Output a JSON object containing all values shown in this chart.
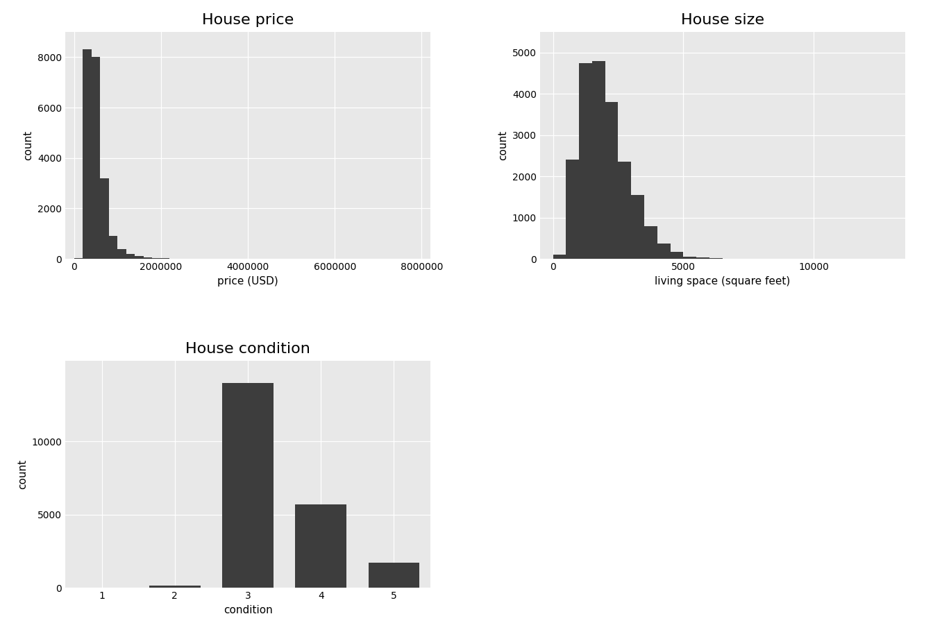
{
  "background_color": "#e8e8e8",
  "bar_color": "#3d3d3d",
  "fig_bg": "#ffffff",
  "plot1": {
    "title": "House price",
    "xlabel": "price (USD)",
    "ylabel": "count",
    "bin_edges": [
      0,
      200000,
      400000,
      600000,
      800000,
      1000000,
      1200000,
      1400000,
      1600000,
      1800000,
      2000000,
      2200000,
      2400000,
      2600000,
      2800000,
      3000000,
      3200000,
      3400000,
      3600000,
      3800000,
      4000000,
      4200000,
      4400000,
      4600000,
      4800000,
      5000000,
      5200000,
      5400000,
      5600000,
      5800000,
      6000000,
      6200000,
      6400000,
      6600000,
      6800000,
      7000000,
      7200000,
      7400000,
      7600000,
      7800000,
      8000000
    ],
    "counts": [
      30,
      8300,
      8000,
      3200,
      900,
      400,
      200,
      100,
      60,
      40,
      25,
      15,
      10,
      8,
      6,
      4,
      3,
      2,
      2,
      1,
      1,
      1,
      1,
      0,
      0,
      0,
      0,
      0,
      0,
      0,
      0,
      0,
      0,
      0,
      0,
      0,
      0,
      0,
      0,
      0
    ],
    "xlim": [
      -200000,
      8200000
    ],
    "ylim": [
      0,
      9000
    ],
    "xticks": [
      0,
      2000000,
      4000000,
      6000000,
      8000000
    ],
    "xticklabels": [
      "0",
      "2000000",
      "4000000",
      "6000000",
      "8000000"
    ],
    "yticks": [
      0,
      2000,
      4000,
      6000,
      8000
    ],
    "title_fontsize": 16,
    "label_fontsize": 11,
    "tick_fontsize": 10
  },
  "plot2": {
    "title": "House size",
    "xlabel": "living space (square feet)",
    "ylabel": "count",
    "bin_edges": [
      0,
      500,
      1000,
      1500,
      2000,
      2500,
      3000,
      3500,
      4000,
      4500,
      5000,
      5500,
      6000,
      6500,
      7000,
      7500,
      8000,
      8500,
      9000,
      9500,
      10000,
      10500,
      11000,
      11500,
      12000,
      12500,
      13000
    ],
    "counts": [
      100,
      2400,
      4750,
      4800,
      3800,
      2350,
      1550,
      800,
      380,
      175,
      60,
      30,
      15,
      8,
      5,
      3,
      2,
      1,
      1,
      0,
      0,
      0,
      0,
      0,
      0,
      0
    ],
    "xlim": [
      -500,
      13500
    ],
    "ylim": [
      0,
      5500
    ],
    "xticks": [
      0,
      5000,
      10000
    ],
    "xticklabels": [
      "0",
      "5000",
      "10000"
    ],
    "yticks": [
      0,
      1000,
      2000,
      3000,
      4000,
      5000
    ],
    "title_fontsize": 16,
    "label_fontsize": 11,
    "tick_fontsize": 10
  },
  "plot3": {
    "title": "House condition",
    "xlabel": "condition",
    "ylabel": "count",
    "categories": [
      1,
      2,
      3,
      4,
      5
    ],
    "counts": [
      20,
      170,
      14000,
      5700,
      1700
    ],
    "xlim": [
      0.5,
      5.5
    ],
    "ylim": [
      0,
      15500
    ],
    "xticks": [
      1,
      2,
      3,
      4,
      5
    ],
    "yticks": [
      0,
      5000,
      10000
    ],
    "bar_width": 0.7,
    "title_fontsize": 16,
    "label_fontsize": 11,
    "tick_fontsize": 10
  }
}
